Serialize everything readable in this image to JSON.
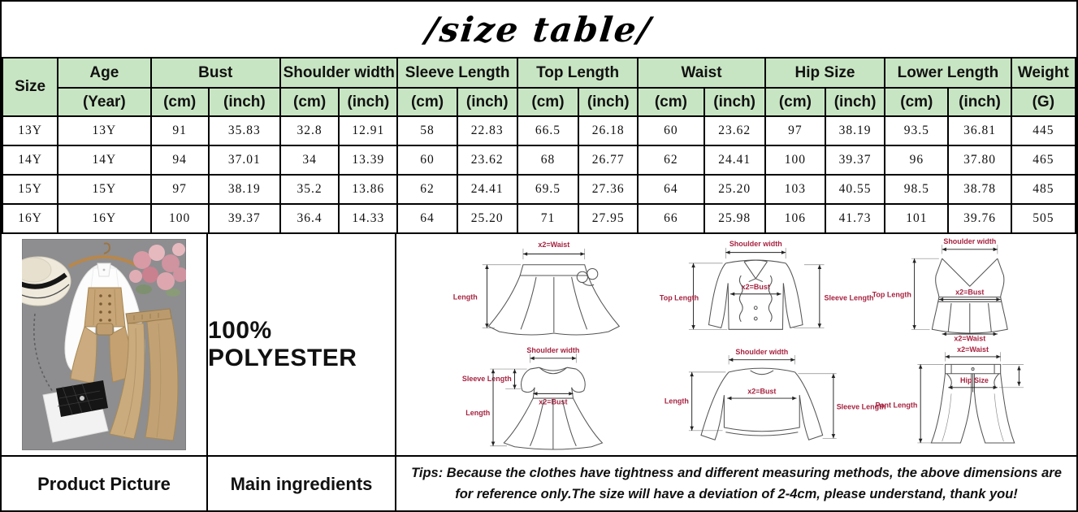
{
  "title": "/size table/",
  "colors": {
    "header_bg": "#c8e5c3",
    "diagram_label": "#a62340"
  },
  "table": {
    "groups": [
      {
        "label": "Size",
        "units": []
      },
      {
        "label": "Age",
        "units": [
          "(Year)"
        ]
      },
      {
        "label": "Bust",
        "units": [
          "(cm)",
          "(inch)"
        ]
      },
      {
        "label": "Shoulder width",
        "units": [
          "(cm)",
          "(inch)"
        ]
      },
      {
        "label": "Sleeve Length",
        "units": [
          "(cm)",
          "(inch)"
        ]
      },
      {
        "label": "Top Length",
        "units": [
          "(cm)",
          "(inch)"
        ]
      },
      {
        "label": "Waist",
        "units": [
          "(cm)",
          "(inch)"
        ]
      },
      {
        "label": "Hip Size",
        "units": [
          "(cm)",
          "(inch)"
        ]
      },
      {
        "label": "Lower Length",
        "units": [
          "(cm)",
          "(inch)"
        ]
      },
      {
        "label": "Weight",
        "units": [
          "(G)"
        ]
      }
    ],
    "rows": [
      [
        "13Y",
        "13Y",
        "91",
        "35.83",
        "32.8",
        "12.91",
        "58",
        "22.83",
        "66.5",
        "26.18",
        "60",
        "23.62",
        "97",
        "38.19",
        "93.5",
        "36.81",
        "445"
      ],
      [
        "14Y",
        "14Y",
        "94",
        "37.01",
        "34",
        "13.39",
        "60",
        "23.62",
        "68",
        "26.77",
        "62",
        "24.41",
        "100",
        "39.37",
        "96",
        "37.80",
        "465"
      ],
      [
        "15Y",
        "15Y",
        "97",
        "38.19",
        "35.2",
        "13.86",
        "62",
        "24.41",
        "69.5",
        "27.36",
        "64",
        "25.20",
        "103",
        "40.55",
        "98.5",
        "38.78",
        "485"
      ],
      [
        "16Y",
        "16Y",
        "100",
        "39.37",
        "36.4",
        "14.33",
        "64",
        "25.20",
        "71",
        "27.95",
        "66",
        "25.98",
        "106",
        "41.73",
        "101",
        "39.76",
        "505"
      ]
    ]
  },
  "bottom": {
    "ingredients": "100% POLYESTER",
    "product_picture_label": "Product Picture",
    "ingredients_label": "Main ingredients",
    "tips_line1": "Tips: Because the clothes have tightness and different measuring methods, the above dimensions are",
    "tips_line2": "for reference only.The size will have a deviation of 2-4cm, please understand, thank you!"
  },
  "diagrams": {
    "items": [
      {
        "name": "skirt",
        "labels": {
          "top": "x2=Waist",
          "left": "Length"
        }
      },
      {
        "name": "jacket",
        "labels": {
          "top": "Shoulder width",
          "left": "Top Length",
          "center": "x2=Bust",
          "right": "Sleeve Length"
        }
      },
      {
        "name": "vest",
        "labels": {
          "top": "Shoulder width",
          "left": "Top Length",
          "center": "x2=Bust",
          "bottom": "x2=Waist"
        }
      },
      {
        "name": "dress",
        "labels": {
          "top": "Shoulder width",
          "upper_left": "Sleeve Length",
          "center": "x2=Bust",
          "left": "Length"
        }
      },
      {
        "name": "sweater",
        "labels": {
          "top": "Shoulder width",
          "left": "Length",
          "center": "x2=Bust",
          "right": "Sleeve Length"
        }
      },
      {
        "name": "pants",
        "labels": {
          "top": "x2=Waist",
          "center": "Hip Size",
          "left": "Pant Length"
        }
      }
    ]
  }
}
